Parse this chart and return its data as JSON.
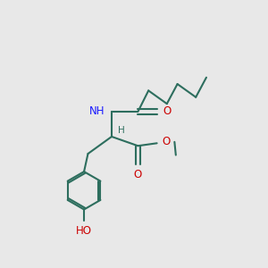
{
  "bg_color": "#e8e8e8",
  "bond_color": "#2d6e5e",
  "bond_width": 1.5,
  "atom_colors": {
    "C": "#2d6e5e",
    "N": "#1a1aff",
    "O": "#cc0000",
    "H": "#2d6e5e"
  },
  "font_size": 8.5,
  "fig_size": [
    3.0,
    3.0
  ],
  "dpi": 100
}
